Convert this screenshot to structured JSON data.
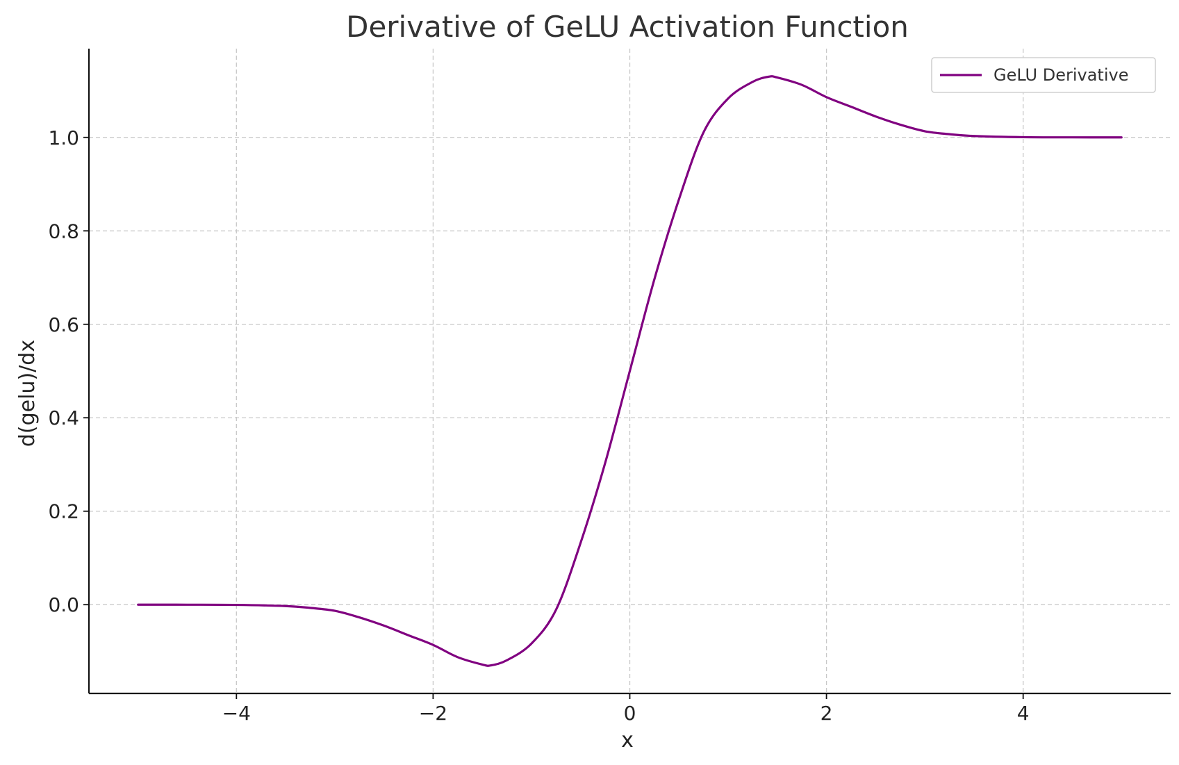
{
  "chart_data": {
    "type": "line",
    "title": "Derivative of GeLU Activation Function",
    "xlabel": "x",
    "ylabel": "d(gelu)/dx",
    "xlim": [
      -5.5,
      5.5
    ],
    "ylim": [
      -0.19,
      1.19
    ],
    "xticks": [
      -4,
      -2,
      0,
      2,
      4
    ],
    "xtick_labels": [
      "−4",
      "−2",
      "0",
      "2",
      "4"
    ],
    "yticks": [
      0.0,
      0.2,
      0.4,
      0.6,
      0.8,
      1.0
    ],
    "ytick_labels": [
      "0.0",
      "0.2",
      "0.4",
      "0.6",
      "0.8",
      "1.0"
    ],
    "grid": true,
    "legend_position": "top-right",
    "series": [
      {
        "name": "GeLU Derivative",
        "color": "#800080",
        "x": [
          -5.0,
          -4.5,
          -4.0,
          -3.5,
          -3.25,
          -3.0,
          -2.75,
          -2.5,
          -2.25,
          -2.0,
          -1.75,
          -1.5,
          -1.414,
          -1.25,
          -1.0,
          -0.75,
          -0.5,
          -0.25,
          0.0,
          0.25,
          0.5,
          0.75,
          1.0,
          1.25,
          1.414,
          1.5,
          1.75,
          2.0,
          2.25,
          2.5,
          2.75,
          3.0,
          3.25,
          3.5,
          4.0,
          4.5,
          5.0
        ],
        "y": [
          0.0,
          -0.0001,
          -0.0005,
          -0.003,
          -0.0069,
          -0.0132,
          -0.0273,
          -0.0449,
          -0.0656,
          -0.0862,
          -0.1124,
          -0.1282,
          -0.13,
          -0.119,
          -0.0833,
          -0.0109,
          0.1325,
          0.3036,
          0.5,
          0.6964,
          0.8675,
          1.0109,
          1.0833,
          1.119,
          1.13,
          1.1282,
          1.1124,
          1.0862,
          1.0656,
          1.0449,
          1.0273,
          1.0132,
          1.0069,
          1.003,
          1.0005,
          1.0001,
          1.0
        ]
      }
    ]
  }
}
